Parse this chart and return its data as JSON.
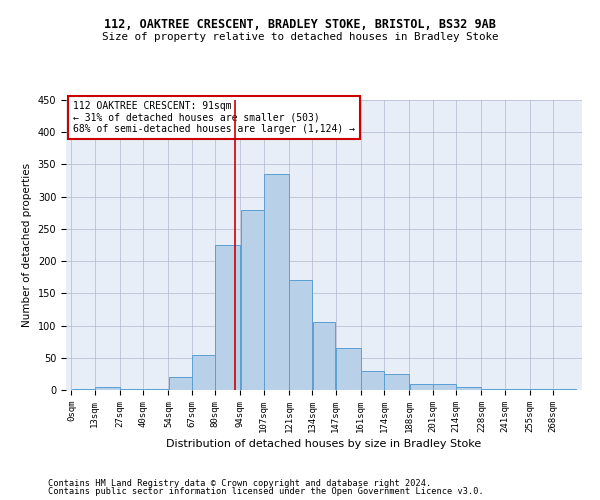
{
  "title1": "112, OAKTREE CRESCENT, BRADLEY STOKE, BRISTOL, BS32 9AB",
  "title2": "Size of property relative to detached houses in Bradley Stoke",
  "xlabel": "Distribution of detached houses by size in Bradley Stoke",
  "ylabel": "Number of detached properties",
  "footer1": "Contains HM Land Registry data © Crown copyright and database right 2024.",
  "footer2": "Contains public sector information licensed under the Open Government Licence v3.0.",
  "annotation_line1": "112 OAKTREE CRESCENT: 91sqm",
  "annotation_line2": "← 31% of detached houses are smaller (503)",
  "annotation_line3": "68% of semi-detached houses are larger (1,124) →",
  "property_size": 91,
  "bar_labels": [
    "0sqm",
    "13sqm",
    "27sqm",
    "40sqm",
    "54sqm",
    "67sqm",
    "80sqm",
    "94sqm",
    "107sqm",
    "121sqm",
    "134sqm",
    "147sqm",
    "161sqm",
    "174sqm",
    "188sqm",
    "201sqm",
    "214sqm",
    "228sqm",
    "241sqm",
    "255sqm",
    "268sqm"
  ],
  "bar_edges": [
    0,
    13,
    27,
    40,
    54,
    67,
    80,
    94,
    107,
    121,
    134,
    147,
    161,
    174,
    188,
    201,
    214,
    228,
    241,
    255,
    268,
    281
  ],
  "bar_values": [
    2,
    5,
    2,
    2,
    20,
    55,
    225,
    280,
    335,
    170,
    105,
    65,
    30,
    25,
    10,
    10,
    5,
    2,
    2,
    2,
    2
  ],
  "bar_color": "#b8d0e8",
  "bar_edge_color": "#5a9fd4",
  "vline_x": 91,
  "vline_color": "#cc0000",
  "annotation_box_color": "#cc0000",
  "background_color": "#e8eef8",
  "grid_color": "#b0b8cc",
  "ylim": [
    0,
    450
  ],
  "yticks": [
    0,
    50,
    100,
    150,
    200,
    250,
    300,
    350,
    400,
    450
  ]
}
